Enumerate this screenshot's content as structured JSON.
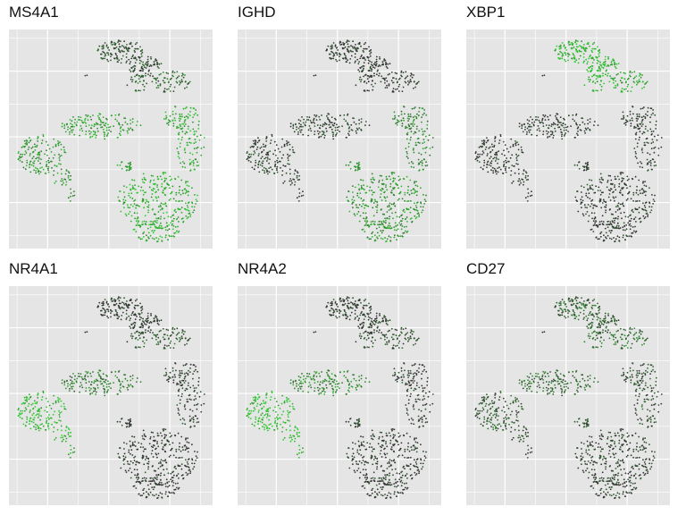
{
  "colors": {
    "panel_background": "#e5e5e5",
    "grid_line": "#ffffff",
    "low_expression": "#333333",
    "high_expression": "#2fd12f"
  },
  "chart_data": [
    {
      "type": "scatter",
      "subtype": "tSNE embedding colored by gene expression",
      "title": "MS4A1",
      "xlabel": "",
      "ylabel": "",
      "grid": true,
      "axes_ticks_shown": false,
      "expression_by_cluster": {
        "top_cluster": 0.15,
        "upper_tail": 0.35,
        "small_dot": 0.0,
        "left_lobe": 0.65,
        "middle_band": 0.7,
        "isolated_blob": 0.65,
        "right_arc": 0.8,
        "bottom_mass": 0.8
      }
    },
    {
      "type": "scatter",
      "subtype": "tSNE embedding colored by gene expression",
      "title": "IGHD",
      "xlabel": "",
      "ylabel": "",
      "grid": true,
      "axes_ticks_shown": false,
      "expression_by_cluster": {
        "top_cluster": 0.02,
        "upper_tail": 0.02,
        "small_dot": 0.0,
        "left_lobe": 0.08,
        "middle_band": 0.08,
        "isolated_blob": 0.6,
        "right_arc": 0.55,
        "bottom_mass": 0.65
      }
    },
    {
      "type": "scatter",
      "subtype": "tSNE embedding colored by gene expression",
      "title": "XBP1",
      "xlabel": "",
      "ylabel": "",
      "grid": true,
      "axes_ticks_shown": false,
      "expression_by_cluster": {
        "top_cluster": 0.85,
        "upper_tail": 0.75,
        "small_dot": 0.0,
        "left_lobe": 0.03,
        "middle_band": 0.03,
        "isolated_blob": 0.05,
        "right_arc": 0.03,
        "bottom_mass": 0.03
      }
    },
    {
      "type": "scatter",
      "subtype": "tSNE embedding colored by gene expression",
      "title": "NR4A1",
      "xlabel": "",
      "ylabel": "",
      "grid": true,
      "axes_ticks_shown": false,
      "expression_by_cluster": {
        "top_cluster": 0.05,
        "upper_tail": 0.25,
        "small_dot": 0.0,
        "left_lobe": 0.85,
        "middle_band": 0.45,
        "isolated_blob": 0.05,
        "right_arc": 0.05,
        "bottom_mass": 0.02
      }
    },
    {
      "type": "scatter",
      "subtype": "tSNE embedding colored by gene expression",
      "title": "NR4A2",
      "xlabel": "",
      "ylabel": "",
      "grid": true,
      "axes_ticks_shown": false,
      "expression_by_cluster": {
        "top_cluster": 0.03,
        "upper_tail": 0.2,
        "small_dot": 0.0,
        "left_lobe": 0.9,
        "middle_band": 0.55,
        "isolated_blob": 0.05,
        "right_arc": 0.05,
        "bottom_mass": 0.03
      }
    },
    {
      "type": "scatter",
      "subtype": "tSNE embedding colored by gene expression",
      "title": "CD27",
      "xlabel": "",
      "ylabel": "",
      "grid": true,
      "axes_ticks_shown": false,
      "expression_by_cluster": {
        "top_cluster": 0.3,
        "upper_tail": 0.4,
        "small_dot": 0.0,
        "left_lobe": 0.25,
        "middle_band": 0.35,
        "isolated_blob": 0.2,
        "right_arc": 0.2,
        "bottom_mass": 0.08
      }
    }
  ]
}
